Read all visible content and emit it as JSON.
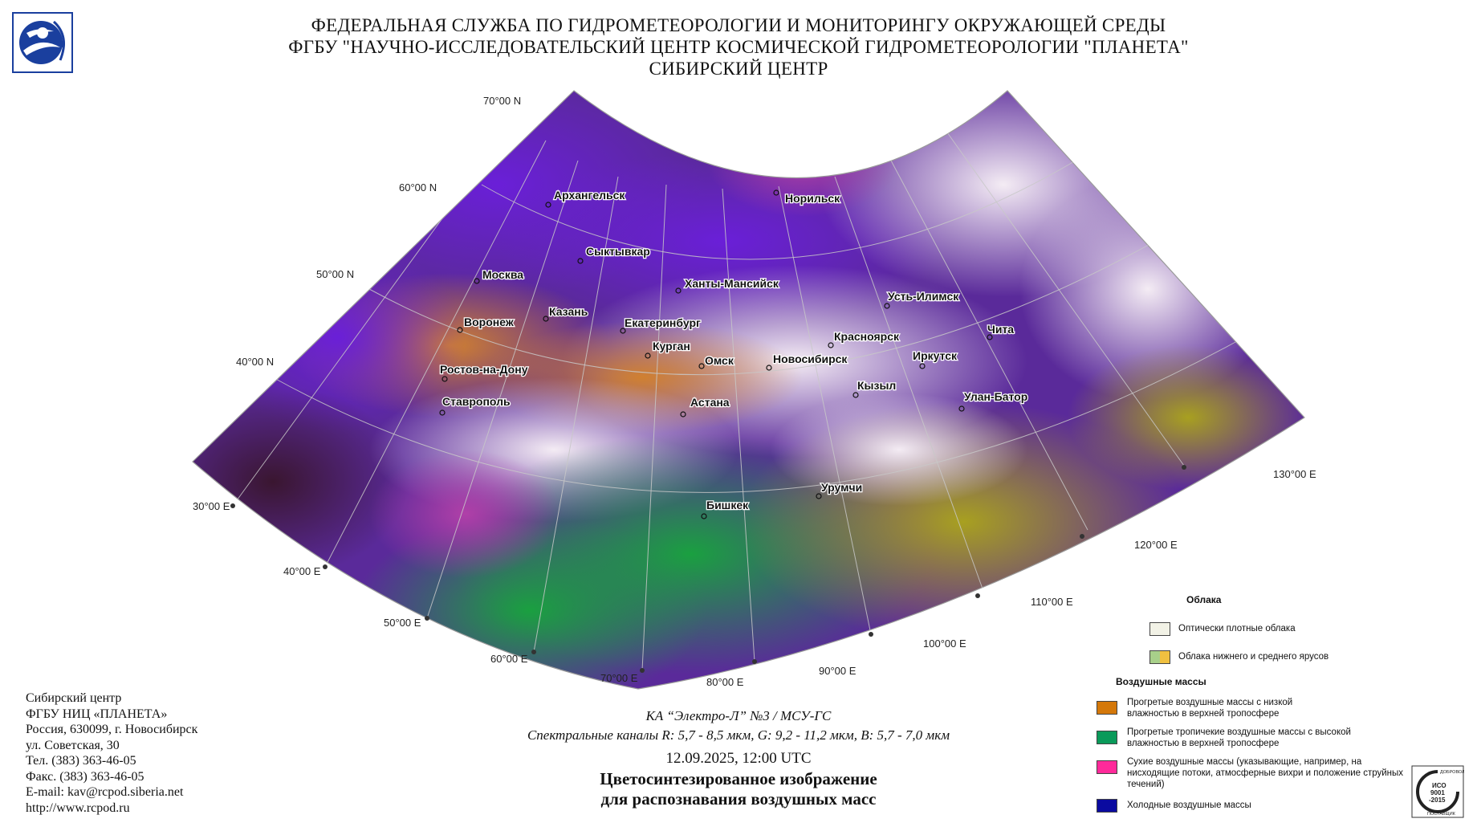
{
  "header": {
    "line1": "ФЕДЕРАЛЬНАЯ СЛУЖБА ПО ГИДРОМЕТЕОРОЛОГИИ И МОНИТОРИНГУ ОКРУЖАЮЩЕЙ СРЕДЫ",
    "line2": "ФГБУ \"НАУЧНО-ИССЛЕДОВАТЕЛЬСКИЙ ЦЕНТР КОСМИЧЕСКОЙ ГИДРОМЕТЕОРОЛОГИИ \"ПЛАНЕТА\"",
    "line3": "СИБИРСКИЙ ЦЕНТР"
  },
  "map": {
    "latitudes": [
      "70°00 N",
      "60°00 N",
      "50°00 N",
      "40°00 N"
    ],
    "longitudes": [
      "30°00 E",
      "40°00 E",
      "50°00 E",
      "60°00 E",
      "70°00 E",
      "80°00 E",
      "90°00 E",
      "100°00 E",
      "110°00 E",
      "120°00 E",
      "130°00 E"
    ],
    "cities": {
      "arkhangelsk": "Архангельск",
      "norilsk": "Норильск",
      "syktyvkar": "Сыктывкар",
      "moskva": "Москва",
      "khanty": "Ханты-Мансийск",
      "kazan": "Казань",
      "voronezh": "Воронеж",
      "ekaterinburg": "Екатеринбург",
      "ustilimsk": "Усть-Илимск",
      "chita": "Чита",
      "krasnoyarsk": "Красноярск",
      "kurgan": "Курган",
      "omsk": "Омск",
      "novosibirsk": "Новосибирск",
      "irkutsk": "Иркутск",
      "rostov": "Ростов-на-Дону",
      "kyzyl": "Кызыл",
      "ulanbator": "Улан-Батор",
      "stavropol": "Ставрополь",
      "astana": "Астана",
      "urumchi": "Урумчи",
      "bishkek": "Бишкек"
    }
  },
  "contact": {
    "line1": "Сибирский центр",
    "line2": "ФГБУ НИЦ «ПЛАНЕТА»",
    "line3": "Россия, 630099, г. Новосибирск",
    "line4": "ул. Советская, 30",
    "line5": "Тел. (383) 363-46-05",
    "line6": "Факс. (383) 363-46-05",
    "line7": "E-mail: kav@rcpod.siberia.net",
    "line8": "http://www.rcpod.ru"
  },
  "info": {
    "satellite": "КА “Электро-Л” №3 / МСУ-ГС",
    "channels": "Спектральные каналы R: 5,7 - 8,5 мкм, G: 9,2 - 11,2 мкм, B: 5,7 - 7,0 мкм",
    "datetime": "12.09.2025, 12:00 UTC",
    "title1": "Цветосинтезированное изображение",
    "title2": "для распознавания воздушных масс"
  },
  "legend": {
    "clouds_title": "Облака",
    "dense_clouds": "Оптически плотные облака",
    "low_mid_clouds": "Облака нижнего и среднего ярусов",
    "air_title": "Воздушные массы",
    "warm_low": "Прогретые воздушные массы с низкой влажностью в верхней тропосфере",
    "warm_tropical": "Прогретые тропичекие воздушные массы с высокой влажностью в верхней тропосфере",
    "dry": "Сухие воздушные массы (указывающие, например, на нисходящие потоки, атмосферные вихри и положение струйных течений)",
    "cold": "Холодные воздушные массы",
    "colors": {
      "dense": "#f2f2e6",
      "low_a": "#a8d08a",
      "low_b": "#f0c040",
      "warm_low": "#d4780a",
      "warm_tropical": "#0a9a5a",
      "dry": "#ff2a9a",
      "cold": "#0a0aa0"
    }
  },
  "iso": {
    "top": "ДОБРОВОЛЬНЫЙ",
    "code1": "ИСО",
    "code2": "9001",
    "code3": "-2015",
    "bottom": "ПОСТАВЩИК"
  }
}
